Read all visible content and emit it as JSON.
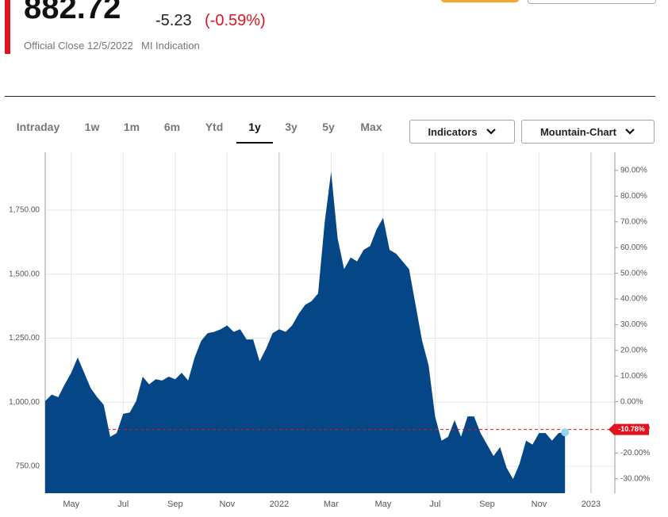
{
  "header": {
    "price": "882.72",
    "change": "-5.23",
    "change_pct": "(-0.59%)",
    "close_label": "Official Close 12/5/2022",
    "indication": "MI Indication"
  },
  "tabs": [
    "Intraday",
    "1w",
    "1m",
    "6m",
    "Ytd",
    "1y",
    "3y",
    "5y",
    "Max"
  ],
  "buttons": [
    "Indicators",
    "Mountain-Chart"
  ],
  "chart_data": {
    "type": "area",
    "color": "#054687",
    "grid": true,
    "categories": [
      null,
      null,
      null,
      null,
      "May",
      null,
      null,
      null,
      null,
      null,
      null,
      null,
      "Jul",
      null,
      null,
      null,
      null,
      null,
      null,
      null,
      "Sep",
      null,
      null,
      null,
      null,
      null,
      null,
      null,
      "Nov",
      null,
      null,
      null,
      null,
      null,
      null,
      null,
      "2022",
      null,
      null,
      null,
      null,
      null,
      null,
      null,
      "Mar",
      null,
      null,
      null,
      null,
      null,
      null,
      null,
      "May",
      null,
      null,
      null,
      null,
      null,
      null,
      null,
      "Jul",
      null,
      null,
      null,
      null,
      null,
      null,
      null,
      "Sep",
      null,
      null,
      null,
      null,
      null,
      null,
      null,
      "Nov",
      null,
      null,
      null,
      null,
      null,
      null,
      null,
      "2023"
    ],
    "values": [
      1005,
      1030,
      1020,
      1070,
      1115,
      1175,
      1115,
      1055,
      1020,
      990,
      865,
      880,
      955,
      960,
      1005,
      1100,
      1070,
      1090,
      1085,
      1100,
      1090,
      1115,
      1085,
      1175,
      1240,
      1270,
      1275,
      1285,
      1300,
      1275,
      1285,
      1245,
      1245,
      1160,
      1210,
      1270,
      1285,
      1275,
      1300,
      1345,
      1380,
      1395,
      1425,
      1700,
      1900,
      1640,
      1520,
      1565,
      1550,
      1595,
      1610,
      1675,
      1720,
      1595,
      1580,
      1550,
      1520,
      1380,
      1240,
      1145,
      945,
      850,
      865,
      930,
      865,
      945,
      945,
      880,
      835,
      790,
      825,
      745,
      700,
      760,
      850,
      835,
      880,
      880,
      850,
      880,
      882.72,
      null,
      null,
      null,
      null
    ],
    "ylim": [
      645,
      1976
    ],
    "yticks": [
      {
        "value": 750,
        "label": "750.00"
      },
      {
        "value": 1000,
        "label": "1,000.00"
      },
      {
        "value": 1250,
        "label": "1,250.00"
      },
      {
        "value": 1500,
        "label": "1,500.00"
      },
      {
        "value": 1750,
        "label": "1,750.00"
      }
    ],
    "y2lim": [
      -35.6,
      97.1
    ],
    "y2ticks": [
      {
        "value": -30,
        "label": "-30.00%"
      },
      {
        "value": -20,
        "label": "-20.00%"
      },
      {
        "value": -10,
        "label": "-10.00%"
      },
      {
        "value": 0,
        "label": "0.00%"
      },
      {
        "value": 10,
        "label": "10.00%"
      },
      {
        "value": 20,
        "label": "20.00%"
      },
      {
        "value": 30,
        "label": "30.00%"
      },
      {
        "value": 40,
        "label": "40.00%"
      },
      {
        "value": 50,
        "label": "50.00%"
      },
      {
        "value": 60,
        "label": "60.00%"
      },
      {
        "value": 70,
        "label": "70.00%"
      },
      {
        "value": 80,
        "label": "80.00%"
      },
      {
        "value": 90,
        "label": "90.00%"
      }
    ],
    "reference": {
      "value": -10.78,
      "label": "-10.78%",
      "axis": "y2",
      "color": "#e0141e"
    }
  }
}
